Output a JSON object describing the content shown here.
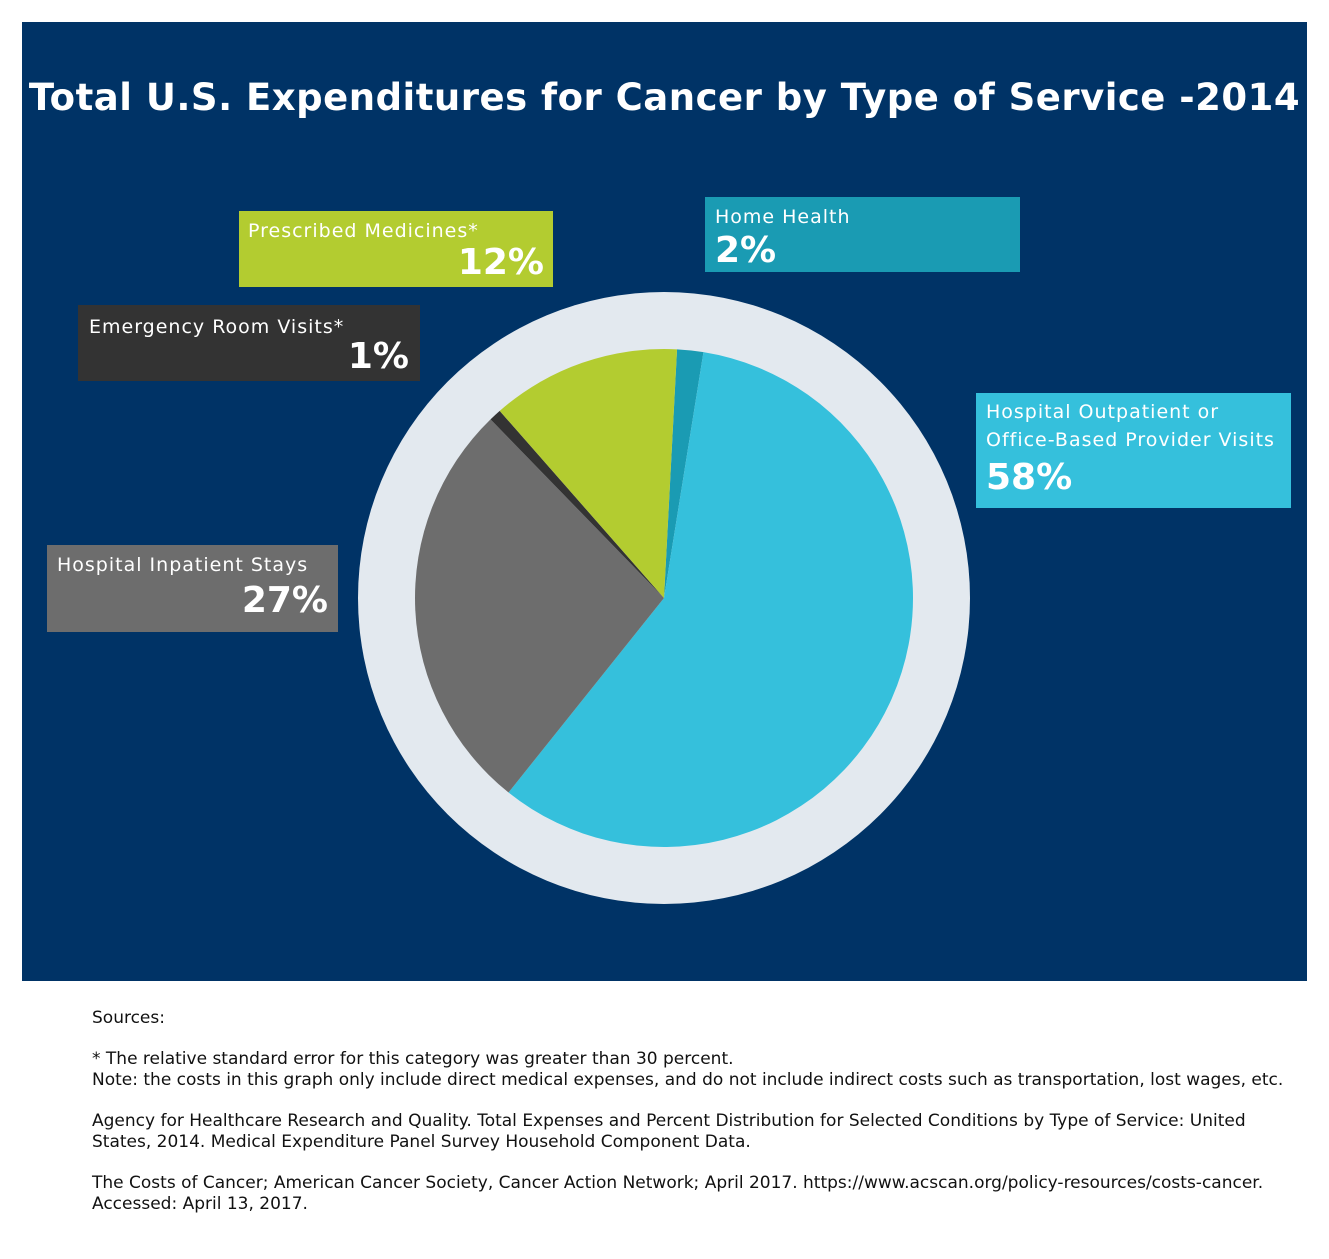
{
  "chart_data": {
    "type": "pie",
    "title": "Total U.S. Expenditures for Cancer by Type of Service -2014",
    "slices": [
      {
        "name": "Home Health",
        "label_lines": [
          "Home Health"
        ],
        "value_label": "2%",
        "value": 1.7,
        "color": "#1a9bb3"
      },
      {
        "name": "Hospital Outpatient or Office-Based Provider Visits",
        "label_lines": [
          "Hospital Outpatient or",
          "Office-Based Provider Visits"
        ],
        "value_label": "58%",
        "value": 58.2,
        "color": "#35c0dc"
      },
      {
        "name": "Hospital Inpatient Stays",
        "label_lines": [
          "Hospital Inpatient Stays"
        ],
        "value_label": "27%",
        "value": 27.0,
        "color": "#6d6d6d"
      },
      {
        "name": "Emergency Room Visits*",
        "label_lines": [
          "Emergency Room Visits*"
        ],
        "value_label": "1%",
        "value": 0.8,
        "color": "#333333"
      },
      {
        "name": "Prescribed Medicines*",
        "label_lines": [
          "Prescribed Medicines*"
        ],
        "value_label": "12%",
        "value": 12.3,
        "color": "#b3cc30"
      }
    ],
    "legend": "callout boxes"
  },
  "colors": {
    "panel_background": "#003366",
    "pie_ring": "#e3e9ef",
    "title_text": "#ffffff"
  },
  "sources": {
    "heading": "Sources:",
    "footnote": "* The relative standard error for this category was greater than 30 percent.",
    "note": "Note: the costs in this graph only include direct medical expenses, and do not include indirect costs such as transportation, lost wages, etc.",
    "ref1": "Agency for Healthcare Research and Quality. Total Expenses and Percent Distribution for Selected Conditions by Type of Service: United States, 2014. Medical Expenditure Panel Survey Household Component Data.",
    "ref2": "The Costs of Cancer; American Cancer Society, Cancer Action Network; April 2017. https://www.acscan.org/policy-resources/costs-cancer. Accessed: April 13, 2017."
  }
}
